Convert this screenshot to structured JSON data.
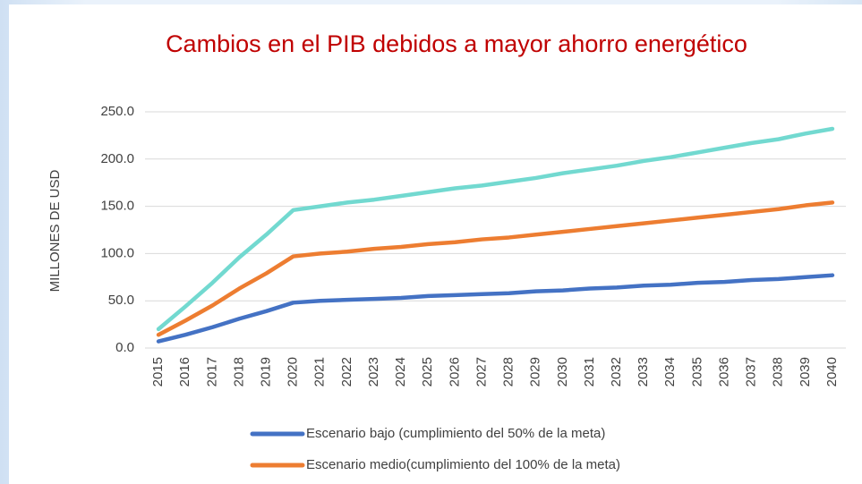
{
  "chart_data": {
    "type": "line",
    "title": "Cambios en el PIB debidos a mayor ahorro energético",
    "y_label": "MILLONES DE USD",
    "categories": [
      "2015",
      "2016",
      "2017",
      "2018",
      "2019",
      "2020",
      "2021",
      "2022",
      "2023",
      "2024",
      "2025",
      "2026",
      "2027",
      "2028",
      "2029",
      "2030",
      "2031",
      "2032",
      "2033",
      "2034",
      "2035",
      "2036",
      "2037",
      "2038",
      "2039",
      "2040"
    ],
    "series": [
      {
        "name": "Escenario bajo (cumplimiento del 50% de la meta)",
        "color": "#4472c4",
        "values": [
          7,
          14,
          22,
          31,
          39,
          48,
          50,
          51,
          52,
          53,
          55,
          56,
          57,
          58,
          60,
          61,
          63,
          64,
          66,
          67,
          69,
          70,
          72,
          73,
          75,
          77
        ]
      },
      {
        "name": "Escenario medio(cumplimiento del 100% de la meta)",
        "color": "#ed7d31",
        "values": [
          14,
          29,
          45,
          63,
          79,
          97,
          100,
          102,
          105,
          107,
          110,
          112,
          115,
          117,
          120,
          123,
          126,
          129,
          132,
          135,
          138,
          141,
          144,
          147,
          151,
          154
        ]
      },
      {
        "color": "#72d9d0",
        "values": [
          20,
          44,
          69,
          96,
          120,
          146,
          150,
          154,
          157,
          161,
          165,
          169,
          172,
          176,
          180,
          185,
          189,
          193,
          198,
          202,
          207,
          212,
          217,
          221,
          227,
          232
        ]
      }
    ],
    "ylim": [
      0,
      250
    ],
    "yticks": [
      {
        "value": 0,
        "label": "0.0"
      },
      {
        "value": 50,
        "label": "50.0"
      },
      {
        "value": 100,
        "label": "100.0"
      },
      {
        "value": 150,
        "label": "150.0"
      },
      {
        "value": 200,
        "label": "200.0"
      },
      {
        "value": 250,
        "label": "250.0"
      }
    ],
    "grid": true
  }
}
